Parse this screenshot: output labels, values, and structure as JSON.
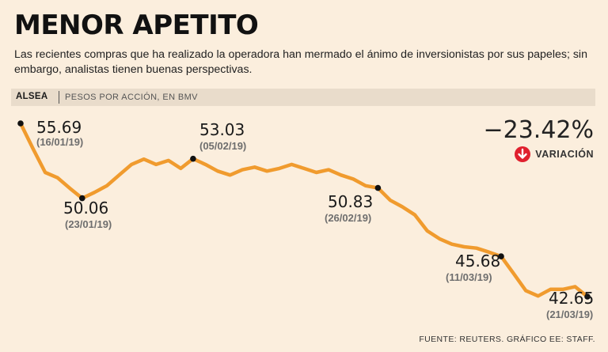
{
  "header": {
    "title": "MENOR APETITO",
    "subtitle": "Las recientes compras que ha realizado la operadora han mermado el ánimo de inversionistas por sus papeles; sin embargo, analistas tienen buenas perspectivas."
  },
  "info_bar": {
    "ticker": "ALSEA",
    "unit": "PESOS POR ACCIÓN, EN BMV"
  },
  "variation": {
    "value": "−23.42%",
    "label": "VARIACIÓN",
    "icon": "down-arrow-icon",
    "icon_color": "#e0202e"
  },
  "footer": {
    "source": "FUENTE: REUTERS. GRÁFICO EE: STAFF."
  },
  "colors": {
    "line": "#f09b2e",
    "background": "#fbeedd"
  },
  "chart_data": {
    "type": "line",
    "title": "MENOR APETITO",
    "ylabel": "PESOS POR ACCIÓN, EN BMV",
    "xlim": [
      0,
      49
    ],
    "ylim": [
      41.5,
      56.5
    ],
    "series": [
      {
        "name": "ALSEA",
        "values": [
          55.69,
          53.8,
          52.0,
          51.6,
          50.8,
          50.06,
          50.5,
          51.0,
          51.8,
          52.6,
          53.0,
          52.6,
          52.9,
          52.3,
          53.03,
          52.6,
          52.1,
          51.8,
          52.2,
          52.4,
          52.1,
          52.3,
          52.6,
          52.3,
          52.0,
          52.2,
          51.8,
          51.5,
          51.0,
          50.83,
          49.9,
          49.4,
          48.8,
          47.6,
          47.0,
          46.6,
          46.4,
          46.3,
          46.0,
          45.68,
          44.4,
          43.1,
          42.7,
          43.2,
          43.2,
          43.4,
          42.65
        ]
      }
    ],
    "annotations": [
      {
        "index": 0,
        "value": "55.69",
        "date": "(16/01/19)"
      },
      {
        "index": 5,
        "value": "50.06",
        "date": "(23/01/19)"
      },
      {
        "index": 14,
        "value": "53.03",
        "date": "(05/02/19)"
      },
      {
        "index": 29,
        "value": "50.83",
        "date": "(26/02/19)"
      },
      {
        "index": 39,
        "value": "45.68",
        "date": "(11/03/19)"
      },
      {
        "index": 46,
        "value": "42.65",
        "date": "(21/03/19)"
      }
    ]
  }
}
